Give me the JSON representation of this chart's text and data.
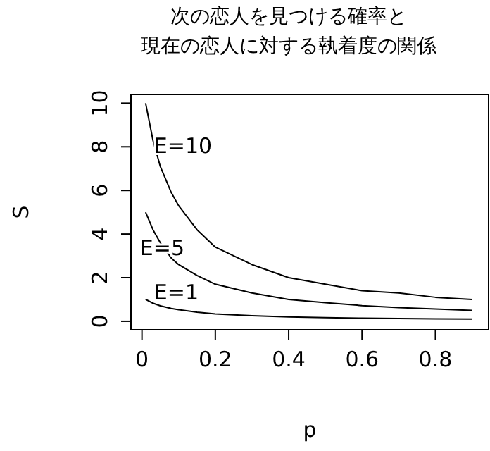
{
  "chart_data": {
    "type": "line",
    "title": "次の恋人を見つける確率と現在の恋人に対する執着度の関係",
    "xlabel": "p",
    "ylabel": "S",
    "x": [
      0.01,
      0.03,
      0.05,
      0.08,
      0.1,
      0.15,
      0.2,
      0.3,
      0.4,
      0.5,
      0.6,
      0.7,
      0.8,
      0.9
    ],
    "series": [
      {
        "name": "E=10",
        "color": "#000000",
        "values": [
          10,
          8.3,
          7.1,
          5.9,
          5.3,
          4.2,
          3.4,
          2.6,
          2.0,
          1.7,
          1.4,
          1.3,
          1.1,
          1.0
        ]
      },
      {
        "name": "E=5",
        "color": "#000000",
        "values": [
          5,
          4.2,
          3.6,
          2.9,
          2.6,
          2.1,
          1.7,
          1.3,
          1.0,
          0.85,
          0.72,
          0.63,
          0.56,
          0.5
        ]
      },
      {
        "name": "E=1",
        "color": "#000000",
        "values": [
          1,
          0.83,
          0.71,
          0.59,
          0.53,
          0.42,
          0.34,
          0.26,
          0.2,
          0.17,
          0.14,
          0.13,
          0.11,
          0.1
        ]
      }
    ],
    "xlim": [
      -0.03,
      0.945
    ],
    "ylim": [
      -0.39,
      10.4
    ],
    "xticks": [
      0,
      0.2,
      0.4,
      0.6,
      0.8
    ],
    "yticks": [
      0,
      2,
      4,
      6,
      8,
      10
    ],
    "grid": false,
    "marker": "none",
    "line_style": "solid"
  }
}
